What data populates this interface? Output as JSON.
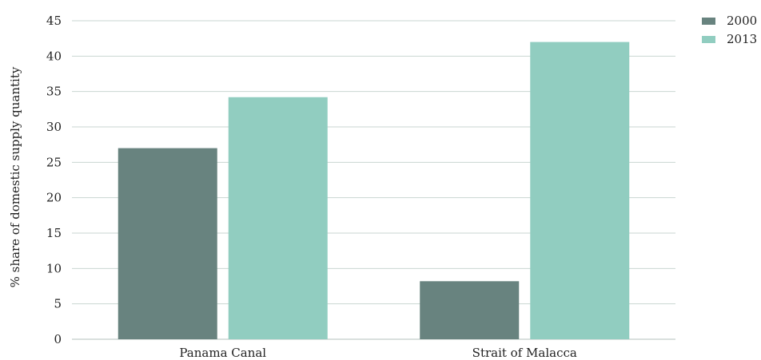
{
  "chart_data": {
    "type": "bar",
    "categories": [
      "Panama Canal",
      "Strait of Malacca"
    ],
    "series": [
      {
        "name": "2000",
        "values": [
          27.0,
          8.2
        ],
        "color": "#68837f"
      },
      {
        "name": "2013",
        "values": [
          34.2,
          42.0
        ],
        "color": "#91cdc0"
      }
    ],
    "title": "",
    "xlabel": "",
    "ylabel": "% share of domestic supply quantity",
    "ylim": [
      0,
      45
    ],
    "yticks": [
      0,
      5,
      10,
      15,
      20,
      25,
      30,
      35,
      40,
      45
    ],
    "grid": true,
    "legend_position": "top-right"
  }
}
